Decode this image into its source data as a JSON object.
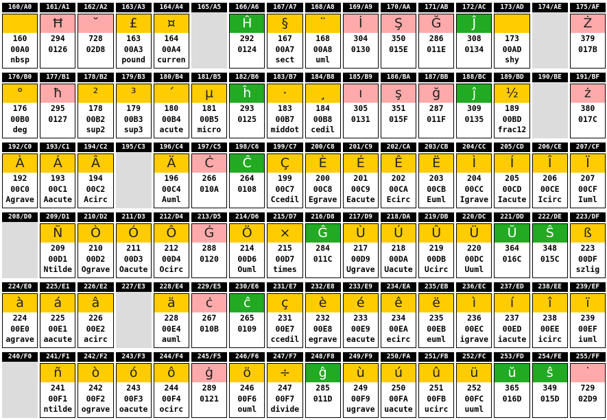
{
  "colors": {
    "Y": "#ffcc00",
    "P": "#ffaaaa",
    "G": "#22aa22",
    "E": "#dcdcdc",
    "header": "#000000"
  },
  "cells": [
    {
      "code": "160/A0",
      "kind": "Y",
      "glyph": "",
      "dec": "160",
      "hex": "00A0",
      "name": "nbsp"
    },
    {
      "code": "161/A1",
      "kind": "P",
      "glyph": "Ħ",
      "dec": "294",
      "hex": "0126",
      "name": ""
    },
    {
      "code": "162/A2",
      "kind": "P",
      "glyph": "˘",
      "dec": "728",
      "hex": "02D8",
      "name": ""
    },
    {
      "code": "163/A3",
      "kind": "Y",
      "glyph": "£",
      "dec": "163",
      "hex": "00A3",
      "name": "pound"
    },
    {
      "code": "164/A4",
      "kind": "Y",
      "glyph": "¤",
      "dec": "164",
      "hex": "00A4",
      "name": "curren"
    },
    {
      "code": "165/A5",
      "kind": "E"
    },
    {
      "code": "166/A6",
      "kind": "G",
      "glyph": "Ĥ",
      "dec": "292",
      "hex": "0124",
      "name": ""
    },
    {
      "code": "167/A7",
      "kind": "Y",
      "glyph": "§",
      "dec": "167",
      "hex": "00A7",
      "name": "sect"
    },
    {
      "code": "168/A8",
      "kind": "Y",
      "glyph": "¨",
      "dec": "168",
      "hex": "00A8",
      "name": "uml"
    },
    {
      "code": "169/A9",
      "kind": "P",
      "glyph": "İ",
      "dec": "304",
      "hex": "0130",
      "name": ""
    },
    {
      "code": "170/AA",
      "kind": "P",
      "glyph": "Ş",
      "dec": "350",
      "hex": "015E",
      "name": ""
    },
    {
      "code": "171/AB",
      "kind": "P",
      "glyph": "Ğ",
      "dec": "286",
      "hex": "011E",
      "name": ""
    },
    {
      "code": "172/AC",
      "kind": "G",
      "glyph": "Ĵ",
      "dec": "308",
      "hex": "0134",
      "name": ""
    },
    {
      "code": "173/AD",
      "kind": "Y",
      "glyph": "",
      "dec": "173",
      "hex": "00AD",
      "name": "shy"
    },
    {
      "code": "174/AE",
      "kind": "E"
    },
    {
      "code": "175/AF",
      "kind": "P",
      "glyph": "Ż",
      "dec": "379",
      "hex": "017B",
      "name": ""
    },
    {
      "code": "176/B0",
      "kind": "Y",
      "glyph": "°",
      "dec": "176",
      "hex": "00B0",
      "name": "deg"
    },
    {
      "code": "177/B1",
      "kind": "P",
      "glyph": "ħ",
      "dec": "295",
      "hex": "0127",
      "name": ""
    },
    {
      "code": "178/B2",
      "kind": "Y",
      "glyph": "²",
      "dec": "178",
      "hex": "00B2",
      "name": "sup2"
    },
    {
      "code": "179/B3",
      "kind": "Y",
      "glyph": "³",
      "dec": "179",
      "hex": "00B3",
      "name": "sup3"
    },
    {
      "code": "180/B4",
      "kind": "Y",
      "glyph": "´",
      "dec": "180",
      "hex": "00B4",
      "name": "acute"
    },
    {
      "code": "181/B5",
      "kind": "Y",
      "glyph": "µ",
      "dec": "181",
      "hex": "00B5",
      "name": "micro"
    },
    {
      "code": "182/B6",
      "kind": "G",
      "glyph": "ĥ",
      "dec": "293",
      "hex": "0125",
      "name": ""
    },
    {
      "code": "183/B7",
      "kind": "Y",
      "glyph": "·",
      "dec": "183",
      "hex": "00B7",
      "name": "middot"
    },
    {
      "code": "184/B8",
      "kind": "Y",
      "glyph": "¸",
      "dec": "184",
      "hex": "00B8",
      "name": "cedil"
    },
    {
      "code": "185/B9",
      "kind": "P",
      "glyph": "ı",
      "dec": "305",
      "hex": "0131",
      "name": ""
    },
    {
      "code": "186/BA",
      "kind": "P",
      "glyph": "ş",
      "dec": "351",
      "hex": "015F",
      "name": ""
    },
    {
      "code": "187/BB",
      "kind": "P",
      "glyph": "ğ",
      "dec": "287",
      "hex": "011F",
      "name": ""
    },
    {
      "code": "188/BC",
      "kind": "G",
      "glyph": "ĵ",
      "dec": "309",
      "hex": "0135",
      "name": ""
    },
    {
      "code": "189/BD",
      "kind": "Y",
      "glyph": "½",
      "dec": "189",
      "hex": "00BD",
      "name": "frac12"
    },
    {
      "code": "190/BE",
      "kind": "E"
    },
    {
      "code": "191/BF",
      "kind": "P",
      "glyph": "ż",
      "dec": "380",
      "hex": "017C",
      "name": ""
    },
    {
      "code": "192/C0",
      "kind": "Y",
      "glyph": "À",
      "dec": "192",
      "hex": "00C0",
      "name": "Agrave"
    },
    {
      "code": "193/C1",
      "kind": "Y",
      "glyph": "Á",
      "dec": "193",
      "hex": "00C1",
      "name": "Aacute"
    },
    {
      "code": "194/C2",
      "kind": "Y",
      "glyph": "Â",
      "dec": "194",
      "hex": "00C2",
      "name": "Acirc"
    },
    {
      "code": "195/C3",
      "kind": "E"
    },
    {
      "code": "196/C4",
      "kind": "Y",
      "glyph": "Ä",
      "dec": "196",
      "hex": "00C4",
      "name": "Auml"
    },
    {
      "code": "197/C5",
      "kind": "P",
      "glyph": "Ċ",
      "dec": "266",
      "hex": "010A",
      "name": ""
    },
    {
      "code": "198/C6",
      "kind": "G",
      "glyph": "Ĉ",
      "dec": "264",
      "hex": "0108",
      "name": ""
    },
    {
      "code": "199/C7",
      "kind": "Y",
      "glyph": "Ç",
      "dec": "199",
      "hex": "00C7",
      "name": "Ccedil"
    },
    {
      "code": "200/C8",
      "kind": "Y",
      "glyph": "È",
      "dec": "200",
      "hex": "00C8",
      "name": "Egrave"
    },
    {
      "code": "201/C9",
      "kind": "Y",
      "glyph": "É",
      "dec": "201",
      "hex": "00C9",
      "name": "Eacute"
    },
    {
      "code": "202/CA",
      "kind": "Y",
      "glyph": "Ê",
      "dec": "202",
      "hex": "00CA",
      "name": "Ecirc"
    },
    {
      "code": "203/CB",
      "kind": "Y",
      "glyph": "Ë",
      "dec": "203",
      "hex": "00CB",
      "name": "Euml"
    },
    {
      "code": "204/CC",
      "kind": "Y",
      "glyph": "Ì",
      "dec": "204",
      "hex": "00CC",
      "name": "Igrave"
    },
    {
      "code": "205/CD",
      "kind": "Y",
      "glyph": "Í",
      "dec": "205",
      "hex": "00CD",
      "name": "Iacute"
    },
    {
      "code": "206/CE",
      "kind": "Y",
      "glyph": "Î",
      "dec": "206",
      "hex": "00CE",
      "name": "Icirc"
    },
    {
      "code": "207/CF",
      "kind": "Y",
      "glyph": "Ï",
      "dec": "207",
      "hex": "00CF",
      "name": "Iuml"
    },
    {
      "code": "208/D0",
      "kind": "E"
    },
    {
      "code": "209/D1",
      "kind": "Y",
      "glyph": "Ñ",
      "dec": "209",
      "hex": "00D1",
      "name": "Ntilde"
    },
    {
      "code": "210/D2",
      "kind": "Y",
      "glyph": "Ò",
      "dec": "210",
      "hex": "00D2",
      "name": "Ograve"
    },
    {
      "code": "211/D3",
      "kind": "Y",
      "glyph": "Ó",
      "dec": "211",
      "hex": "00D3",
      "name": "Oacute"
    },
    {
      "code": "212/D4",
      "kind": "Y",
      "glyph": "Ô",
      "dec": "212",
      "hex": "00D4",
      "name": "Ocirc"
    },
    {
      "code": "213/D5",
      "kind": "P",
      "glyph": "Ġ",
      "dec": "288",
      "hex": "0120",
      "name": ""
    },
    {
      "code": "214/D6",
      "kind": "Y",
      "glyph": "Ö",
      "dec": "214",
      "hex": "00D6",
      "name": "Ouml"
    },
    {
      "code": "215/D7",
      "kind": "Y",
      "glyph": "×",
      "dec": "215",
      "hex": "00D7",
      "name": "times"
    },
    {
      "code": "216/D8",
      "kind": "G",
      "glyph": "Ĝ",
      "dec": "284",
      "hex": "011C",
      "name": ""
    },
    {
      "code": "217/D9",
      "kind": "Y",
      "glyph": "Ù",
      "dec": "217",
      "hex": "00D9",
      "name": "Ugrave"
    },
    {
      "code": "218/DA",
      "kind": "Y",
      "glyph": "Ú",
      "dec": "218",
      "hex": "00DA",
      "name": "Uacute"
    },
    {
      "code": "219/DB",
      "kind": "Y",
      "glyph": "Û",
      "dec": "219",
      "hex": "00DB",
      "name": "Ucirc"
    },
    {
      "code": "220/DC",
      "kind": "Y",
      "glyph": "Ü",
      "dec": "220",
      "hex": "00DC",
      "name": "Uuml"
    },
    {
      "code": "221/DD",
      "kind": "G",
      "glyph": "Ŭ",
      "dec": "364",
      "hex": "016C",
      "name": ""
    },
    {
      "code": "222/DE",
      "kind": "G",
      "glyph": "Ŝ",
      "dec": "348",
      "hex": "015C",
      "name": ""
    },
    {
      "code": "223/DF",
      "kind": "Y",
      "glyph": "ß",
      "dec": "223",
      "hex": "00DF",
      "name": "szlig"
    },
    {
      "code": "224/E0",
      "kind": "Y",
      "glyph": "à",
      "dec": "224",
      "hex": "00E0",
      "name": "agrave"
    },
    {
      "code": "225/E1",
      "kind": "Y",
      "glyph": "á",
      "dec": "225",
      "hex": "00E1",
      "name": "aacute"
    },
    {
      "code": "226/E2",
      "kind": "Y",
      "glyph": "â",
      "dec": "226",
      "hex": "00E2",
      "name": "acirc"
    },
    {
      "code": "227/E3",
      "kind": "E"
    },
    {
      "code": "228/E4",
      "kind": "Y",
      "glyph": "ä",
      "dec": "228",
      "hex": "00E4",
      "name": "auml"
    },
    {
      "code": "229/E5",
      "kind": "P",
      "glyph": "ċ",
      "dec": "267",
      "hex": "010B",
      "name": ""
    },
    {
      "code": "230/E6",
      "kind": "G",
      "glyph": "ĉ",
      "dec": "265",
      "hex": "0109",
      "name": ""
    },
    {
      "code": "231/E7",
      "kind": "Y",
      "glyph": "ç",
      "dec": "231",
      "hex": "00E7",
      "name": "ccedil"
    },
    {
      "code": "232/E8",
      "kind": "Y",
      "glyph": "è",
      "dec": "232",
      "hex": "00E8",
      "name": "egrave"
    },
    {
      "code": "233/E9",
      "kind": "Y",
      "glyph": "é",
      "dec": "233",
      "hex": "00E9",
      "name": "eacute"
    },
    {
      "code": "234/EA",
      "kind": "Y",
      "glyph": "ê",
      "dec": "234",
      "hex": "00EA",
      "name": "ecirc"
    },
    {
      "code": "235/EB",
      "kind": "Y",
      "glyph": "ë",
      "dec": "235",
      "hex": "00EB",
      "name": "euml"
    },
    {
      "code": "236/EC",
      "kind": "Y",
      "glyph": "ì",
      "dec": "236",
      "hex": "00EC",
      "name": "igrave"
    },
    {
      "code": "237/ED",
      "kind": "Y",
      "glyph": "í",
      "dec": "237",
      "hex": "00ED",
      "name": "iacute"
    },
    {
      "code": "238/EE",
      "kind": "Y",
      "glyph": "î",
      "dec": "238",
      "hex": "00EE",
      "name": "icirc"
    },
    {
      "code": "239/EF",
      "kind": "Y",
      "glyph": "ï",
      "dec": "239",
      "hex": "00EF",
      "name": "iuml"
    },
    {
      "code": "240/F0",
      "kind": "E"
    },
    {
      "code": "241/F1",
      "kind": "Y",
      "glyph": "ñ",
      "dec": "241",
      "hex": "00F1",
      "name": "ntilde"
    },
    {
      "code": "242/F2",
      "kind": "Y",
      "glyph": "ò",
      "dec": "242",
      "hex": "00F2",
      "name": "ograve"
    },
    {
      "code": "243/F3",
      "kind": "Y",
      "glyph": "ó",
      "dec": "243",
      "hex": "00F3",
      "name": "oacute"
    },
    {
      "code": "244/F4",
      "kind": "Y",
      "glyph": "ô",
      "dec": "244",
      "hex": "00F4",
      "name": "ocirc"
    },
    {
      "code": "245/F5",
      "kind": "P",
      "glyph": "ġ",
      "dec": "289",
      "hex": "0121",
      "name": ""
    },
    {
      "code": "246/F6",
      "kind": "Y",
      "glyph": "ö",
      "dec": "246",
      "hex": "00F6",
      "name": "ouml"
    },
    {
      "code": "247/F7",
      "kind": "Y",
      "glyph": "÷",
      "dec": "247",
      "hex": "00F7",
      "name": "divide"
    },
    {
      "code": "248/F8",
      "kind": "G",
      "glyph": "ĝ",
      "dec": "285",
      "hex": "011D",
      "name": ""
    },
    {
      "code": "249/F9",
      "kind": "Y",
      "glyph": "ù",
      "dec": "249",
      "hex": "00F9",
      "name": "ugrave"
    },
    {
      "code": "250/FA",
      "kind": "Y",
      "glyph": "ú",
      "dec": "250",
      "hex": "00FA",
      "name": "uacute"
    },
    {
      "code": "251/FB",
      "kind": "Y",
      "glyph": "û",
      "dec": "251",
      "hex": "00FB",
      "name": "ucirc"
    },
    {
      "code": "252/FC",
      "kind": "Y",
      "glyph": "ü",
      "dec": "252",
      "hex": "00FC",
      "name": "uuml"
    },
    {
      "code": "253/FD",
      "kind": "G",
      "glyph": "ŭ",
      "dec": "365",
      "hex": "016D",
      "name": ""
    },
    {
      "code": "254/FE",
      "kind": "G",
      "glyph": "ŝ",
      "dec": "349",
      "hex": "015D",
      "name": ""
    },
    {
      "code": "255/FF",
      "kind": "P",
      "glyph": "˙",
      "dec": "729",
      "hex": "02D9",
      "name": ""
    }
  ]
}
